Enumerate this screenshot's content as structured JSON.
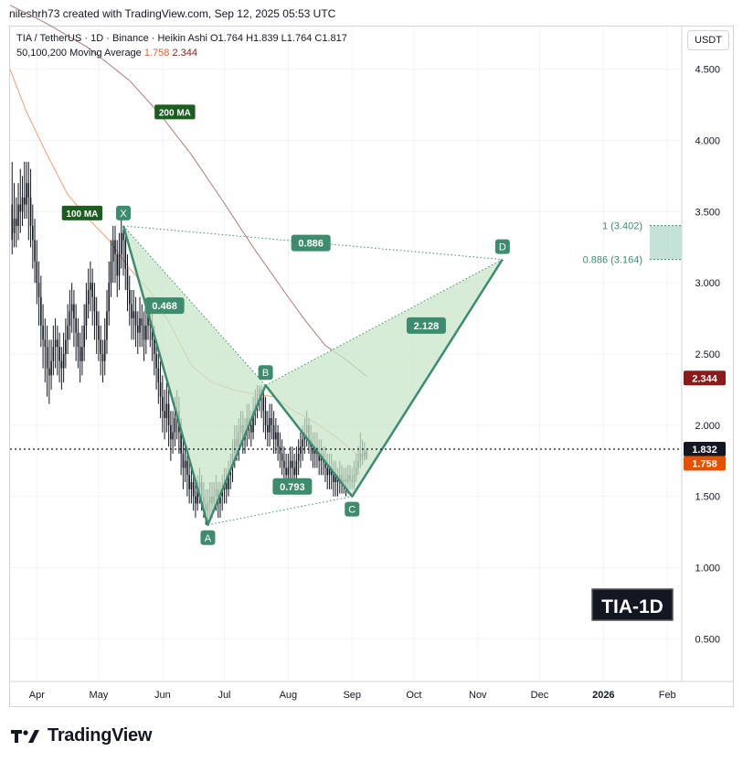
{
  "header": {
    "author_line": "nileshrh73 created with TradingView.com, Sep 12, 2025 05:53 UTC"
  },
  "legend": {
    "symbol_line": "TIA / TetherUS · 1D · Binance · Heikin Ashi",
    "ohlc": {
      "o": "O1.764",
      "h": "H1.839",
      "l": "L1.764",
      "c": "C1.817"
    },
    "ma_label": "50,100,200 Moving Average",
    "ma_value_1": "1.758",
    "ma_value_2": "2.344"
  },
  "currency_button": "USDT",
  "footer": {
    "brand": "TradingView"
  },
  "colors": {
    "pattern_green": "#3d8c6e",
    "pattern_fill": "#c8e6c9",
    "ma100": "#f0a070",
    "ma200": "#b07a7a",
    "price_tag": "#131722",
    "ma1_tag": "#e65100",
    "ma2_tag": "#8b1a1a"
  },
  "chart_data": {
    "type": "candlestick",
    "symbol": "TIA / TetherUS",
    "interval": "1D",
    "exchange": "Binance",
    "candle_type": "Heikin Ashi",
    "ylim": [
      0.2,
      4.8
    ],
    "y_ticks": [
      "4.500",
      "4.000",
      "3.500",
      "3.000",
      "2.500",
      "2.000",
      "1.500",
      "1.000",
      "0.500"
    ],
    "y_tick_values": [
      4.5,
      4.0,
      3.5,
      3.0,
      2.5,
      2.0,
      1.5,
      1.0,
      0.5
    ],
    "x_ticks": [
      "Apr",
      "May",
      "Jun",
      "Jul",
      "Aug",
      "Sep",
      "Oct",
      "Nov",
      "Dec",
      "2026",
      "Feb"
    ],
    "x_tick_days": [
      0,
      30,
      61,
      91,
      122,
      153,
      183,
      214,
      244,
      275,
      306
    ],
    "x_range_days": [
      -13,
      313
    ],
    "current_price": {
      "value": 1.832,
      "label": "1.832"
    },
    "ma_tags": [
      {
        "label": "1.758",
        "value": 1.758,
        "color": "#e65100"
      },
      {
        "label": "2.344",
        "value": 2.344,
        "color": "#8b1a1a"
      }
    ],
    "harmonic": {
      "points": [
        {
          "name": "X",
          "day": 42,
          "price": 3.4
        },
        {
          "name": "A",
          "day": 83,
          "price": 1.3
        },
        {
          "name": "B",
          "day": 111,
          "price": 2.28
        },
        {
          "name": "C",
          "day": 153,
          "price": 1.5
        },
        {
          "name": "D",
          "day": 226,
          "price": 3.164
        }
      ],
      "ratios": [
        {
          "label": "0.468",
          "day": 62,
          "price": 2.84
        },
        {
          "label": "0.793",
          "day": 124,
          "price": 1.57
        },
        {
          "label": "2.128",
          "day": 189,
          "price": 2.7
        },
        {
          "label": "0.886",
          "day": 133,
          "price": 3.28
        }
      ]
    },
    "fib_levels": [
      {
        "label": "1 (3.402)",
        "value": 3.402
      },
      {
        "label": "0.886 (3.164)",
        "value": 3.164
      }
    ],
    "ma_labels": [
      {
        "label": "100 MA",
        "day": 22,
        "price": 3.49
      },
      {
        "label": "200 MA",
        "day": 67,
        "price": 4.2
      }
    ],
    "ma100": [
      [
        -13,
        4.5
      ],
      [
        -5,
        4.2
      ],
      [
        5,
        3.9
      ],
      [
        15,
        3.62
      ],
      [
        25,
        3.45
      ],
      [
        35,
        3.3
      ],
      [
        45,
        3.1
      ],
      [
        55,
        2.94
      ],
      [
        65,
        2.7
      ],
      [
        75,
        2.42
      ],
      [
        85,
        2.3
      ],
      [
        95,
        2.25
      ],
      [
        105,
        2.22
      ],
      [
        115,
        2.2
      ],
      [
        125,
        2.1
      ],
      [
        135,
        2.02
      ],
      [
        145,
        1.92
      ],
      [
        155,
        1.8
      ],
      [
        160,
        1.758
      ]
    ],
    "ma200": [
      [
        -13,
        4.95
      ],
      [
        5,
        4.82
      ],
      [
        25,
        4.65
      ],
      [
        45,
        4.42
      ],
      [
        60,
        4.18
      ],
      [
        75,
        3.9
      ],
      [
        90,
        3.58
      ],
      [
        105,
        3.25
      ],
      [
        120,
        2.94
      ],
      [
        130,
        2.74
      ],
      [
        140,
        2.56
      ],
      [
        150,
        2.46
      ],
      [
        160,
        2.344
      ]
    ],
    "candles": [
      [
        -12,
        3.55,
        3.3,
        3.85,
        3.2
      ],
      [
        -11,
        3.35,
        3.45,
        3.7,
        3.25
      ],
      [
        -10,
        3.45,
        3.4,
        3.6,
        3.25
      ],
      [
        -9,
        3.4,
        3.55,
        3.7,
        3.3
      ],
      [
        -8,
        3.55,
        3.5,
        3.8,
        3.35
      ],
      [
        -7,
        3.5,
        3.6,
        3.75,
        3.4
      ],
      [
        -6,
        3.6,
        3.55,
        3.85,
        3.45
      ],
      [
        -5,
        3.55,
        3.7,
        3.85,
        3.45
      ],
      [
        -4,
        3.7,
        3.6,
        3.85,
        3.3
      ],
      [
        -3,
        3.6,
        3.4,
        3.8,
        3.25
      ],
      [
        -2,
        3.4,
        3.3,
        3.55,
        3.1
      ],
      [
        -1,
        3.3,
        3.15,
        3.45,
        3.0
      ],
      [
        0,
        3.15,
        3.0,
        3.3,
        2.85
      ],
      [
        1,
        3.0,
        2.9,
        3.15,
        2.7
      ],
      [
        2,
        2.9,
        2.7,
        3.05,
        2.55
      ],
      [
        3,
        2.7,
        2.6,
        2.85,
        2.4
      ],
      [
        4,
        2.6,
        2.55,
        2.75,
        2.3
      ],
      [
        5,
        2.55,
        2.4,
        2.7,
        2.2
      ],
      [
        6,
        2.4,
        2.35,
        2.6,
        2.15
      ],
      [
        7,
        2.35,
        2.45,
        2.6,
        2.25
      ],
      [
        8,
        2.45,
        2.55,
        2.7,
        2.35
      ],
      [
        9,
        2.55,
        2.6,
        2.75,
        2.4
      ],
      [
        10,
        2.6,
        2.55,
        2.7,
        2.35
      ],
      [
        11,
        2.55,
        2.45,
        2.65,
        2.3
      ],
      [
        12,
        2.45,
        2.4,
        2.55,
        2.25
      ],
      [
        13,
        2.4,
        2.5,
        2.65,
        2.3
      ],
      [
        14,
        2.5,
        2.6,
        2.75,
        2.4
      ],
      [
        15,
        2.6,
        2.7,
        2.85,
        2.5
      ],
      [
        16,
        2.7,
        2.8,
        2.95,
        2.6
      ],
      [
        17,
        2.8,
        2.85,
        3.0,
        2.65
      ],
      [
        18,
        2.85,
        2.75,
        2.95,
        2.55
      ],
      [
        19,
        2.75,
        2.65,
        2.85,
        2.45
      ],
      [
        20,
        2.65,
        2.55,
        2.75,
        2.4
      ],
      [
        21,
        2.55,
        2.45,
        2.65,
        2.3
      ],
      [
        22,
        2.45,
        2.55,
        2.7,
        2.35
      ],
      [
        23,
        2.55,
        2.7,
        2.85,
        2.45
      ],
      [
        24,
        2.7,
        2.85,
        3.0,
        2.6
      ],
      [
        25,
        2.85,
        2.95,
        3.1,
        2.75
      ],
      [
        26,
        2.95,
        3.0,
        3.15,
        2.8
      ],
      [
        27,
        3.0,
        2.9,
        3.1,
        2.7
      ],
      [
        28,
        2.9,
        2.8,
        3.0,
        2.6
      ],
      [
        29,
        2.8,
        2.7,
        2.9,
        2.5
      ],
      [
        30,
        2.7,
        2.6,
        2.8,
        2.45
      ],
      [
        31,
        2.6,
        2.5,
        2.7,
        2.35
      ],
      [
        32,
        2.5,
        2.45,
        2.6,
        2.3
      ],
      [
        33,
        2.45,
        2.6,
        2.75,
        2.35
      ],
      [
        34,
        2.6,
        2.8,
        2.95,
        2.5
      ],
      [
        35,
        2.8,
        3.0,
        3.15,
        2.7
      ],
      [
        36,
        3.0,
        3.15,
        3.3,
        2.9
      ],
      [
        37,
        3.15,
        3.3,
        3.4,
        3.0
      ],
      [
        38,
        3.3,
        3.2,
        3.4,
        3.0
      ],
      [
        39,
        3.2,
        3.05,
        3.3,
        2.9
      ],
      [
        40,
        3.05,
        3.2,
        3.35,
        2.95
      ],
      [
        41,
        3.2,
        3.35,
        3.45,
        3.1
      ],
      [
        42,
        3.35,
        3.3,
        3.4,
        3.05
      ],
      [
        43,
        3.3,
        3.1,
        3.35,
        2.95
      ],
      [
        44,
        3.1,
        2.95,
        3.2,
        2.8
      ],
      [
        45,
        2.95,
        2.85,
        3.05,
        2.7
      ],
      [
        46,
        2.85,
        2.75,
        2.95,
        2.6
      ],
      [
        47,
        2.75,
        2.8,
        2.95,
        2.6
      ],
      [
        48,
        2.8,
        2.7,
        2.9,
        2.55
      ],
      [
        49,
        2.7,
        2.65,
        2.8,
        2.5
      ],
      [
        50,
        2.65,
        2.75,
        2.9,
        2.55
      ],
      [
        51,
        2.75,
        2.7,
        2.85,
        2.55
      ],
      [
        52,
        2.7,
        2.6,
        2.8,
        2.45
      ],
      [
        53,
        2.6,
        2.7,
        2.85,
        2.5
      ],
      [
        54,
        2.7,
        2.8,
        2.9,
        2.6
      ],
      [
        55,
        2.8,
        2.7,
        2.9,
        2.55
      ],
      [
        56,
        2.7,
        2.6,
        2.8,
        2.45
      ],
      [
        57,
        2.6,
        2.5,
        2.7,
        2.35
      ],
      [
        58,
        2.5,
        2.4,
        2.6,
        2.25
      ],
      [
        59,
        2.4,
        2.3,
        2.5,
        2.15
      ],
      [
        60,
        2.3,
        2.2,
        2.45,
        2.05
      ],
      [
        61,
        2.2,
        2.1,
        2.35,
        1.95
      ],
      [
        62,
        2.1,
        2.05,
        2.25,
        1.9
      ],
      [
        63,
        2.05,
        2.15,
        2.3,
        1.95
      ],
      [
        64,
        2.15,
        2.0,
        2.25,
        1.85
      ],
      [
        65,
        2.0,
        1.9,
        2.1,
        1.75
      ],
      [
        66,
        1.9,
        1.95,
        2.1,
        1.8
      ],
      [
        67,
        1.95,
        2.05,
        2.2,
        1.85
      ],
      [
        68,
        2.05,
        2.1,
        2.25,
        1.9
      ],
      [
        69,
        2.1,
        1.95,
        2.2,
        1.8
      ],
      [
        70,
        1.95,
        1.8,
        2.05,
        1.65
      ],
      [
        71,
        1.8,
        1.7,
        1.9,
        1.55
      ],
      [
        72,
        1.7,
        1.75,
        1.85,
        1.6
      ],
      [
        73,
        1.75,
        1.65,
        1.85,
        1.5
      ],
      [
        74,
        1.65,
        1.55,
        1.75,
        1.45
      ],
      [
        75,
        1.55,
        1.6,
        1.7,
        1.45
      ],
      [
        76,
        1.6,
        1.5,
        1.65,
        1.4
      ],
      [
        77,
        1.5,
        1.45,
        1.6,
        1.35
      ],
      [
        78,
        1.45,
        1.55,
        1.65,
        1.4
      ],
      [
        79,
        1.55,
        1.6,
        1.7,
        1.45
      ],
      [
        80,
        1.6,
        1.5,
        1.65,
        1.4
      ],
      [
        81,
        1.5,
        1.45,
        1.6,
        1.35
      ],
      [
        82,
        1.45,
        1.4,
        1.55,
        1.3
      ],
      [
        83,
        1.4,
        1.45,
        1.55,
        1.3
      ],
      [
        84,
        1.45,
        1.5,
        1.6,
        1.35
      ],
      [
        85,
        1.5,
        1.45,
        1.6,
        1.35
      ],
      [
        86,
        1.45,
        1.5,
        1.6,
        1.4
      ],
      [
        87,
        1.5,
        1.55,
        1.65,
        1.4
      ],
      [
        88,
        1.55,
        1.45,
        1.6,
        1.35
      ],
      [
        89,
        1.45,
        1.5,
        1.6,
        1.35
      ],
      [
        90,
        1.5,
        1.55,
        1.65,
        1.4
      ],
      [
        91,
        1.55,
        1.6,
        1.7,
        1.45
      ],
      [
        92,
        1.6,
        1.55,
        1.7,
        1.45
      ],
      [
        93,
        1.55,
        1.65,
        1.75,
        1.5
      ],
      [
        94,
        1.65,
        1.7,
        1.8,
        1.55
      ],
      [
        95,
        1.7,
        1.8,
        1.9,
        1.6
      ],
      [
        96,
        1.8,
        1.9,
        2.0,
        1.7
      ],
      [
        97,
        1.9,
        1.85,
        2.0,
        1.75
      ],
      [
        98,
        1.85,
        1.95,
        2.05,
        1.75
      ],
      [
        99,
        1.95,
        2.0,
        2.1,
        1.85
      ],
      [
        100,
        2.0,
        1.9,
        2.1,
        1.8
      ],
      [
        101,
        1.9,
        1.95,
        2.05,
        1.8
      ],
      [
        102,
        1.95,
        2.05,
        2.15,
        1.85
      ],
      [
        103,
        2.05,
        2.0,
        2.15,
        1.9
      ],
      [
        104,
        2.0,
        1.95,
        2.1,
        1.85
      ],
      [
        105,
        1.95,
        2.1,
        2.2,
        1.9
      ],
      [
        106,
        2.1,
        2.15,
        2.25,
        2.0
      ],
      [
        107,
        2.15,
        2.2,
        2.28,
        2.05
      ],
      [
        108,
        2.2,
        2.25,
        2.28,
        2.1
      ],
      [
        109,
        2.25,
        2.2,
        2.28,
        2.05
      ],
      [
        110,
        2.2,
        2.1,
        2.25,
        1.95
      ],
      [
        111,
        2.1,
        2.0,
        2.2,
        1.9
      ],
      [
        112,
        2.0,
        1.95,
        2.1,
        1.85
      ],
      [
        113,
        1.95,
        2.05,
        2.15,
        1.85
      ],
      [
        114,
        2.05,
        2.0,
        2.15,
        1.9
      ],
      [
        115,
        2.0,
        1.9,
        2.1,
        1.8
      ],
      [
        116,
        1.9,
        1.95,
        2.05,
        1.8
      ],
      [
        117,
        1.95,
        1.85,
        2.0,
        1.75
      ],
      [
        118,
        1.85,
        1.8,
        1.95,
        1.7
      ],
      [
        119,
        1.8,
        1.75,
        1.9,
        1.65
      ],
      [
        120,
        1.75,
        1.7,
        1.85,
        1.6
      ],
      [
        121,
        1.7,
        1.65,
        1.8,
        1.55
      ],
      [
        122,
        1.65,
        1.7,
        1.8,
        1.55
      ],
      [
        123,
        1.7,
        1.75,
        1.85,
        1.6
      ],
      [
        124,
        1.75,
        1.7,
        1.85,
        1.6
      ],
      [
        125,
        1.7,
        1.65,
        1.8,
        1.55
      ],
      [
        126,
        1.65,
        1.75,
        1.85,
        1.6
      ],
      [
        127,
        1.75,
        1.8,
        1.9,
        1.65
      ],
      [
        128,
        1.8,
        1.85,
        1.95,
        1.7
      ],
      [
        129,
        1.85,
        1.9,
        2.0,
        1.75
      ],
      [
        130,
        1.9,
        1.95,
        2.05,
        1.8
      ],
      [
        131,
        1.95,
        2.0,
        2.1,
        1.85
      ],
      [
        132,
        2.0,
        1.9,
        2.05,
        1.8
      ],
      [
        133,
        1.9,
        1.85,
        2.0,
        1.75
      ],
      [
        134,
        1.85,
        1.8,
        1.95,
        1.7
      ],
      [
        135,
        1.8,
        1.85,
        1.95,
        1.7
      ],
      [
        136,
        1.85,
        1.8,
        1.95,
        1.7
      ],
      [
        137,
        1.8,
        1.75,
        1.9,
        1.65
      ],
      [
        138,
        1.75,
        1.8,
        1.9,
        1.65
      ],
      [
        139,
        1.8,
        1.75,
        1.85,
        1.65
      ],
      [
        140,
        1.75,
        1.7,
        1.85,
        1.6
      ],
      [
        141,
        1.7,
        1.65,
        1.8,
        1.55
      ],
      [
        142,
        1.65,
        1.7,
        1.8,
        1.55
      ],
      [
        143,
        1.7,
        1.65,
        1.8,
        1.55
      ],
      [
        144,
        1.65,
        1.6,
        1.75,
        1.5
      ],
      [
        145,
        1.6,
        1.65,
        1.75,
        1.5
      ],
      [
        146,
        1.65,
        1.6,
        1.7,
        1.5
      ],
      [
        147,
        1.6,
        1.65,
        1.75,
        1.52
      ],
      [
        148,
        1.65,
        1.6,
        1.72,
        1.52
      ],
      [
        149,
        1.6,
        1.62,
        1.7,
        1.52
      ],
      [
        150,
        1.62,
        1.6,
        1.7,
        1.5
      ],
      [
        151,
        1.6,
        1.65,
        1.72,
        1.52
      ],
      [
        152,
        1.65,
        1.62,
        1.72,
        1.55
      ],
      [
        153,
        1.62,
        1.6,
        1.7,
        1.55
      ],
      [
        154,
        1.6,
        1.65,
        1.75,
        1.55
      ],
      [
        155,
        1.65,
        1.7,
        1.8,
        1.6
      ],
      [
        156,
        1.7,
        1.75,
        1.85,
        1.65
      ],
      [
        157,
        1.75,
        1.8,
        1.95,
        1.7
      ],
      [
        158,
        1.8,
        1.78,
        1.9,
        1.72
      ],
      [
        159,
        1.78,
        1.82,
        1.88,
        1.75
      ],
      [
        160,
        1.764,
        1.817,
        1.839,
        1.764
      ]
    ]
  }
}
